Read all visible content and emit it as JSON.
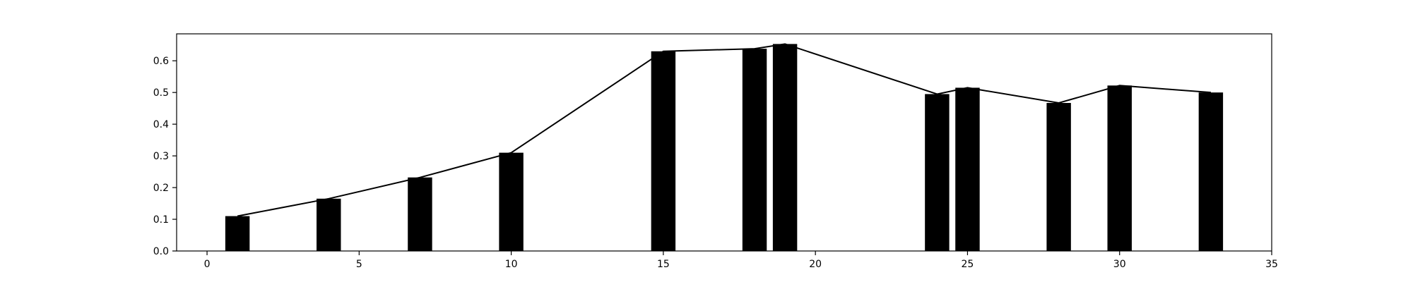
{
  "chart_data": {
    "type": "bar",
    "title": "",
    "xlabel": "",
    "ylabel": "",
    "xlim": [
      -1,
      35
    ],
    "ylim": [
      0,
      0.685
    ],
    "grid": false,
    "legend": "none",
    "bar_width": 0.8,
    "x": [
      1,
      4,
      7,
      10,
      15,
      18,
      19,
      24,
      25,
      28,
      30,
      33
    ],
    "values": [
      0.11,
      0.165,
      0.232,
      0.31,
      0.63,
      0.638,
      0.653,
      0.495,
      0.515,
      0.467,
      0.522,
      0.5
    ],
    "line": {
      "x": [
        1,
        4,
        7,
        10,
        15,
        18,
        19,
        24,
        25,
        28,
        30,
        33
      ],
      "y": [
        0.11,
        0.165,
        0.232,
        0.31,
        0.63,
        0.638,
        0.653,
        0.495,
        0.515,
        0.467,
        0.522,
        0.5
      ]
    },
    "xticks": [
      0,
      5,
      10,
      15,
      20,
      25,
      30,
      35
    ],
    "xtick_labels": [
      "0",
      "5",
      "10",
      "15",
      "20",
      "25",
      "30",
      "35"
    ],
    "yticks": [
      0.0,
      0.1,
      0.2,
      0.3,
      0.4,
      0.5,
      0.6
    ],
    "ytick_labels": [
      "0.0",
      "0.1",
      "0.2",
      "0.3",
      "0.4",
      "0.5",
      "0.6"
    ],
    "bar_color": "#000000",
    "line_color": "#000000"
  }
}
